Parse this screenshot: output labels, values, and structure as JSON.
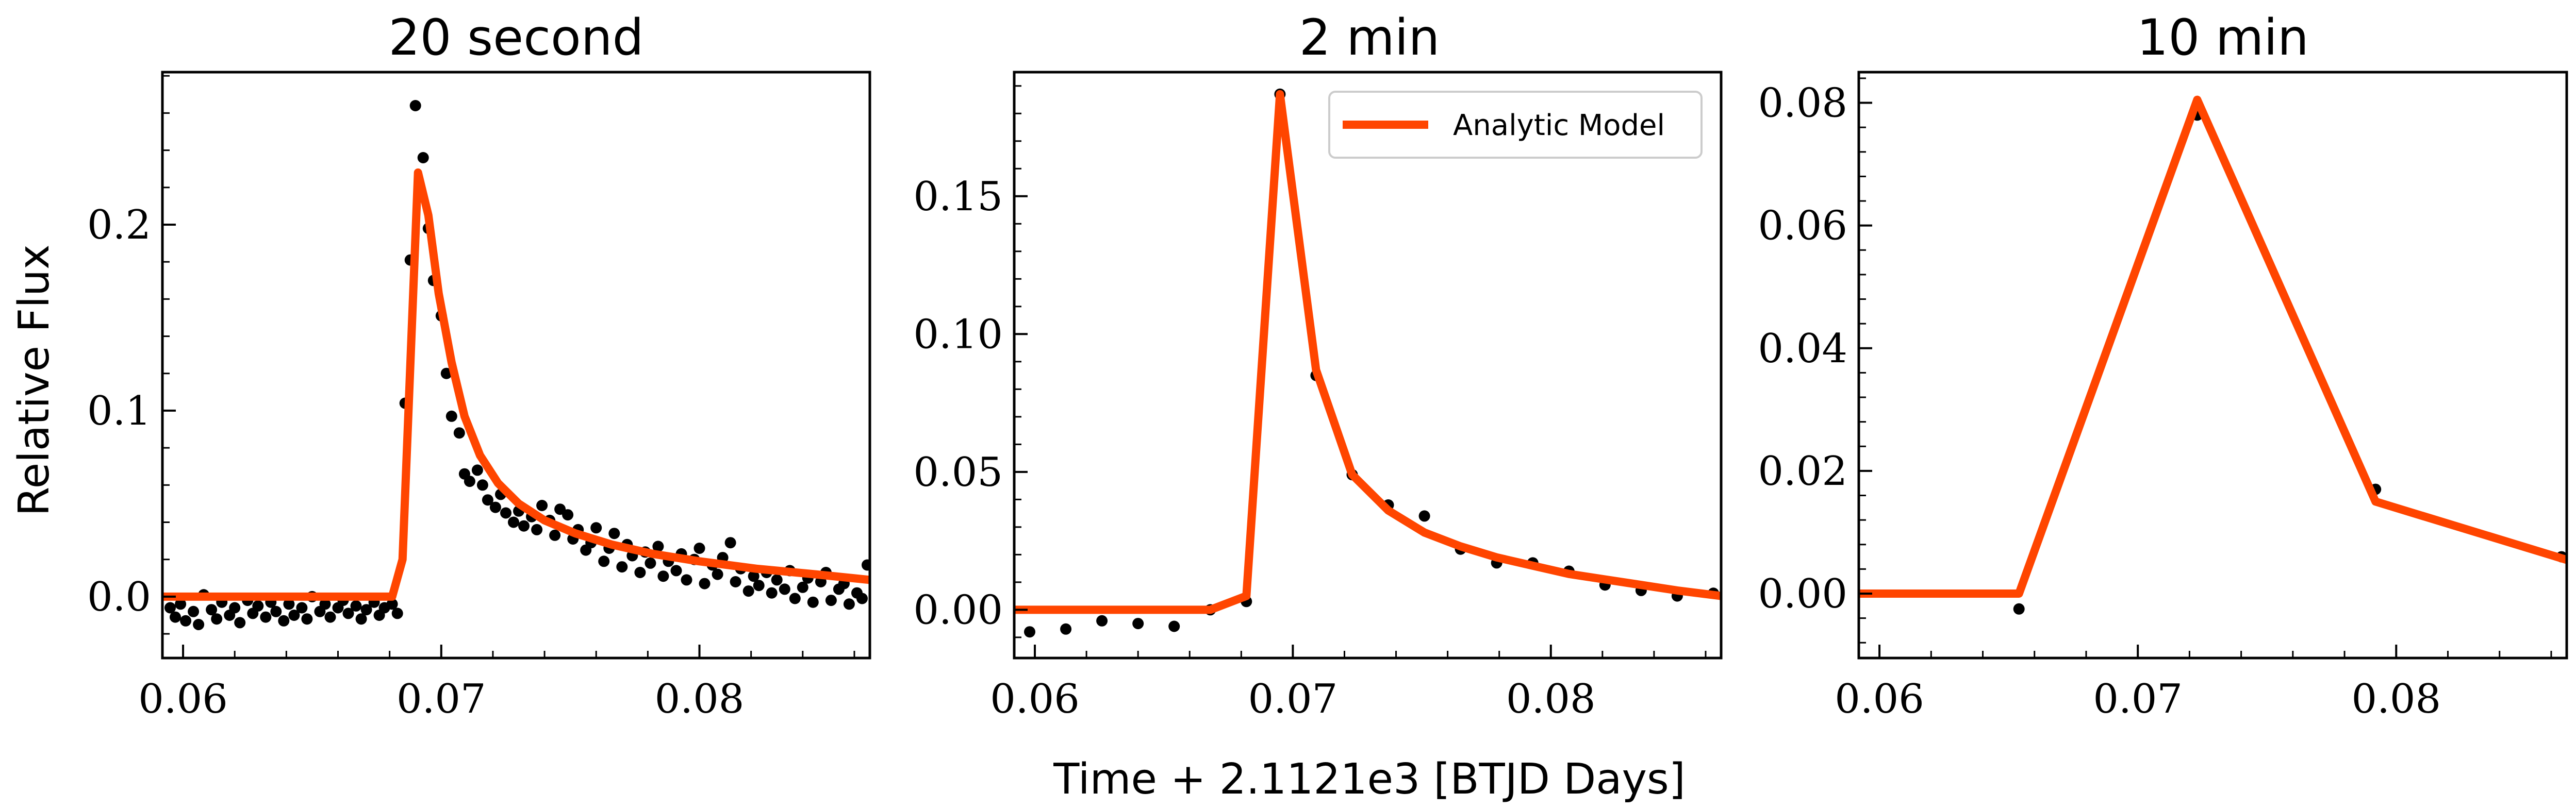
{
  "figure": {
    "xlabel": "Time + 2.1121e3 [BTJD Days]",
    "ylabel": "Relative Flux",
    "legend_label": "Analytic Model",
    "model_color": "#ff4500",
    "point_color": "#000000"
  },
  "chart_data": [
    {
      "type": "scatter",
      "title": "20 second",
      "xlim": [
        0.0592,
        0.0866
      ],
      "ylim": [
        -0.033,
        0.282
      ],
      "xticks": [
        {
          "value": 0.06,
          "label": "0.06"
        },
        {
          "value": 0.07,
          "label": "0.07"
        },
        {
          "value": 0.08,
          "label": "0.08"
        }
      ],
      "yticks": [
        {
          "value": 0.0,
          "label": "0.0"
        },
        {
          "value": 0.1,
          "label": "0.1"
        },
        {
          "value": 0.2,
          "label": "0.2"
        }
      ],
      "series": [
        {
          "kind": "points",
          "x": [
            0.0595,
            0.0597,
            0.0599,
            0.0601,
            0.0604,
            0.0606,
            0.0608,
            0.0611,
            0.0613,
            0.0615,
            0.0618,
            0.062,
            0.0622,
            0.0625,
            0.0627,
            0.0629,
            0.0632,
            0.0634,
            0.0636,
            0.0639,
            0.0641,
            0.0643,
            0.0646,
            0.0648,
            0.065,
            0.0653,
            0.0655,
            0.0657,
            0.066,
            0.0662,
            0.0664,
            0.0667,
            0.0669,
            0.0671,
            0.0674,
            0.0676,
            0.0678,
            0.0681,
            0.0683,
            0.0686,
            0.0688,
            0.069,
            0.0693,
            0.0695,
            0.0697,
            0.07,
            0.0702,
            0.0704,
            0.0707,
            0.0709,
            0.0711,
            0.0714,
            0.0716,
            0.0718,
            0.0721,
            0.0723,
            0.0725,
            0.0728,
            0.073,
            0.0732,
            0.0735,
            0.0737,
            0.0739,
            0.0742,
            0.0744,
            0.0746,
            0.0749,
            0.0751,
            0.0753,
            0.0756,
            0.0758,
            0.076,
            0.0763,
            0.0765,
            0.0767,
            0.077,
            0.0772,
            0.0774,
            0.0777,
            0.0779,
            0.0781,
            0.0784,
            0.0786,
            0.0788,
            0.0791,
            0.0793,
            0.0795,
            0.0798,
            0.08,
            0.0802,
            0.0805,
            0.0807,
            0.0809,
            0.0812,
            0.0814,
            0.0816,
            0.0819,
            0.0821,
            0.0823,
            0.0826,
            0.0828,
            0.083,
            0.0833,
            0.0835,
            0.0837,
            0.084,
            0.0842,
            0.0844,
            0.0847,
            0.0849,
            0.0851,
            0.0854,
            0.0856,
            0.0858,
            0.0861,
            0.0863,
            0.0865
          ],
          "y": [
            -0.006,
            -0.011,
            -0.004,
            -0.013,
            -0.008,
            -0.015,
            0.001,
            -0.007,
            -0.012,
            -0.003,
            -0.01,
            -0.006,
            -0.014,
            -0.002,
            -0.009,
            -0.005,
            -0.011,
            -0.003,
            -0.008,
            -0.013,
            -0.004,
            -0.01,
            -0.006,
            -0.012,
            0.0,
            -0.008,
            -0.004,
            -0.011,
            -0.006,
            -0.002,
            -0.009,
            -0.005,
            -0.012,
            -0.007,
            -0.003,
            -0.01,
            -0.006,
            -0.004,
            -0.009,
            0.104,
            0.181,
            0.264,
            0.236,
            0.198,
            0.17,
            0.151,
            0.12,
            0.097,
            0.088,
            0.066,
            0.062,
            0.068,
            0.06,
            0.052,
            0.048,
            0.055,
            0.045,
            0.04,
            0.046,
            0.038,
            0.043,
            0.036,
            0.049,
            0.041,
            0.033,
            0.047,
            0.044,
            0.031,
            0.036,
            0.025,
            0.029,
            0.037,
            0.019,
            0.026,
            0.034,
            0.016,
            0.028,
            0.022,
            0.013,
            0.024,
            0.018,
            0.027,
            0.011,
            0.019,
            0.014,
            0.023,
            0.009,
            0.02,
            0.026,
            0.007,
            0.017,
            0.012,
            0.021,
            0.029,
            0.008,
            0.015,
            0.003,
            0.011,
            0.006,
            0.013,
            0.002,
            0.009,
            0.004,
            0.014,
            -0.001,
            0.005,
            0.01,
            -0.003,
            0.008,
            0.013,
            -0.002,
            0.004,
            0.007,
            -0.004,
            0.002,
            -0.001,
            0.017
          ]
        },
        {
          "kind": "model",
          "name": "Analytic Model",
          "x": [
            0.0592,
            0.0681,
            0.0685,
            0.0691,
            0.0695,
            0.0699,
            0.0704,
            0.0709,
            0.0715,
            0.0722,
            0.073,
            0.074,
            0.0752,
            0.0766,
            0.0782,
            0.08,
            0.0822,
            0.0845,
            0.0866
          ],
          "y": [
            0.0,
            0.0,
            0.02,
            0.228,
            0.205,
            0.163,
            0.126,
            0.097,
            0.076,
            0.061,
            0.05,
            0.041,
            0.034,
            0.028,
            0.023,
            0.019,
            0.015,
            0.012,
            0.009
          ]
        }
      ]
    },
    {
      "type": "scatter",
      "title": "2 min",
      "xlim": [
        0.0592,
        0.0866
      ],
      "ylim": [
        -0.0175,
        0.195
      ],
      "xticks": [
        {
          "value": 0.06,
          "label": "0.06"
        },
        {
          "value": 0.07,
          "label": "0.07"
        },
        {
          "value": 0.08,
          "label": "0.08"
        }
      ],
      "yticks": [
        {
          "value": 0.0,
          "label": "0.00"
        },
        {
          "value": 0.05,
          "label": "0.05"
        },
        {
          "value": 0.1,
          "label": "0.10"
        },
        {
          "value": 0.15,
          "label": "0.15"
        }
      ],
      "legend": "top-right",
      "series": [
        {
          "kind": "points",
          "x": [
            0.0598,
            0.0612,
            0.0626,
            0.064,
            0.0654,
            0.0668,
            0.0682,
            0.0695,
            0.0709,
            0.0723,
            0.0737,
            0.0751,
            0.0765,
            0.0779,
            0.0793,
            0.0807,
            0.0821,
            0.0835,
            0.0849,
            0.0863
          ],
          "y": [
            -0.008,
            -0.007,
            -0.004,
            -0.005,
            -0.006,
            0.0,
            0.003,
            0.187,
            0.085,
            0.049,
            0.038,
            0.034,
            0.022,
            0.017,
            0.017,
            0.014,
            0.009,
            0.007,
            0.005,
            0.006
          ]
        },
        {
          "kind": "model",
          "name": "Analytic Model",
          "x": [
            0.0592,
            0.0668,
            0.0682,
            0.0695,
            0.0709,
            0.0723,
            0.0737,
            0.0751,
            0.0765,
            0.0779,
            0.0793,
            0.0807,
            0.0821,
            0.0835,
            0.0849,
            0.0866
          ],
          "y": [
            0.0,
            0.0,
            0.005,
            0.187,
            0.087,
            0.049,
            0.036,
            0.028,
            0.023,
            0.019,
            0.016,
            0.013,
            0.011,
            0.009,
            0.007,
            0.005
          ]
        }
      ]
    },
    {
      "type": "scatter",
      "title": "10 min",
      "xlim": [
        0.0592,
        0.0866
      ],
      "ylim": [
        -0.0105,
        0.085
      ],
      "xticks": [
        {
          "value": 0.06,
          "label": "0.06"
        },
        {
          "value": 0.07,
          "label": "0.07"
        },
        {
          "value": 0.08,
          "label": "0.08"
        }
      ],
      "yticks": [
        {
          "value": 0.0,
          "label": "0.00"
        },
        {
          "value": 0.02,
          "label": "0.02"
        },
        {
          "value": 0.04,
          "label": "0.04"
        },
        {
          "value": 0.06,
          "label": "0.06"
        },
        {
          "value": 0.08,
          "label": "0.08"
        }
      ],
      "series": [
        {
          "kind": "points",
          "x": [
            0.0654,
            0.0723,
            0.0792,
            0.0864
          ],
          "y": [
            -0.0025,
            0.078,
            0.017,
            0.006
          ]
        },
        {
          "kind": "model",
          "name": "Analytic Model",
          "x": [
            0.0592,
            0.0654,
            0.0723,
            0.0792,
            0.0866
          ],
          "y": [
            0.0,
            0.0,
            0.0805,
            0.015,
            0.0055
          ]
        }
      ]
    }
  ]
}
